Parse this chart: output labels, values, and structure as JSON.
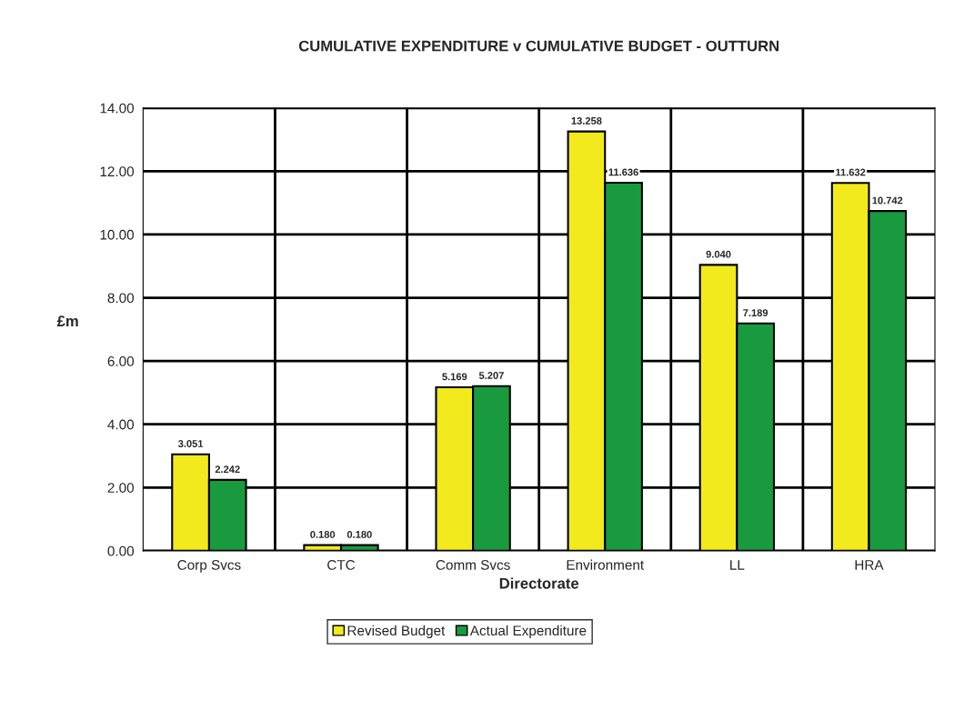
{
  "chart_data": {
    "type": "bar",
    "title": "CUMULATIVE EXPENDITURE v CUMULATIVE BUDGET - OUTTURN",
    "xlabel": "Directorate",
    "ylabel": "£m",
    "categories": [
      "Corp Svcs",
      "CTC",
      "Comm Svcs",
      "Environment",
      "LL",
      "HRA"
    ],
    "series": [
      {
        "name": "Revised Budget",
        "color": "#f2ea1c",
        "values": [
          3.051,
          0.18,
          5.169,
          13.258,
          9.04,
          11.632
        ],
        "value_labels": [
          "3.051",
          "0.180",
          "5.169",
          "13.258",
          "9.040",
          "11.632"
        ]
      },
      {
        "name": "Actual Expenditure",
        "color": "#1a9a3e",
        "values": [
          2.242,
          0.18,
          5.207,
          11.636,
          7.189,
          10.742
        ],
        "value_labels": [
          "2.242",
          "0.180",
          "5.207",
          "11.636",
          "7.189",
          "10.742"
        ]
      }
    ],
    "ylim": [
      0,
      14
    ],
    "yticks": [
      {
        "value": 0,
        "label": "0.00"
      },
      {
        "value": 2,
        "label": "2.00"
      },
      {
        "value": 4,
        "label": "4.00"
      },
      {
        "value": 6,
        "label": "6.00"
      },
      {
        "value": 8,
        "label": "8.00"
      },
      {
        "value": 10,
        "label": "10.00"
      },
      {
        "value": 12,
        "label": "12.00"
      },
      {
        "value": 14,
        "label": "14.00"
      }
    ],
    "grid": true,
    "legend": "bottom"
  }
}
